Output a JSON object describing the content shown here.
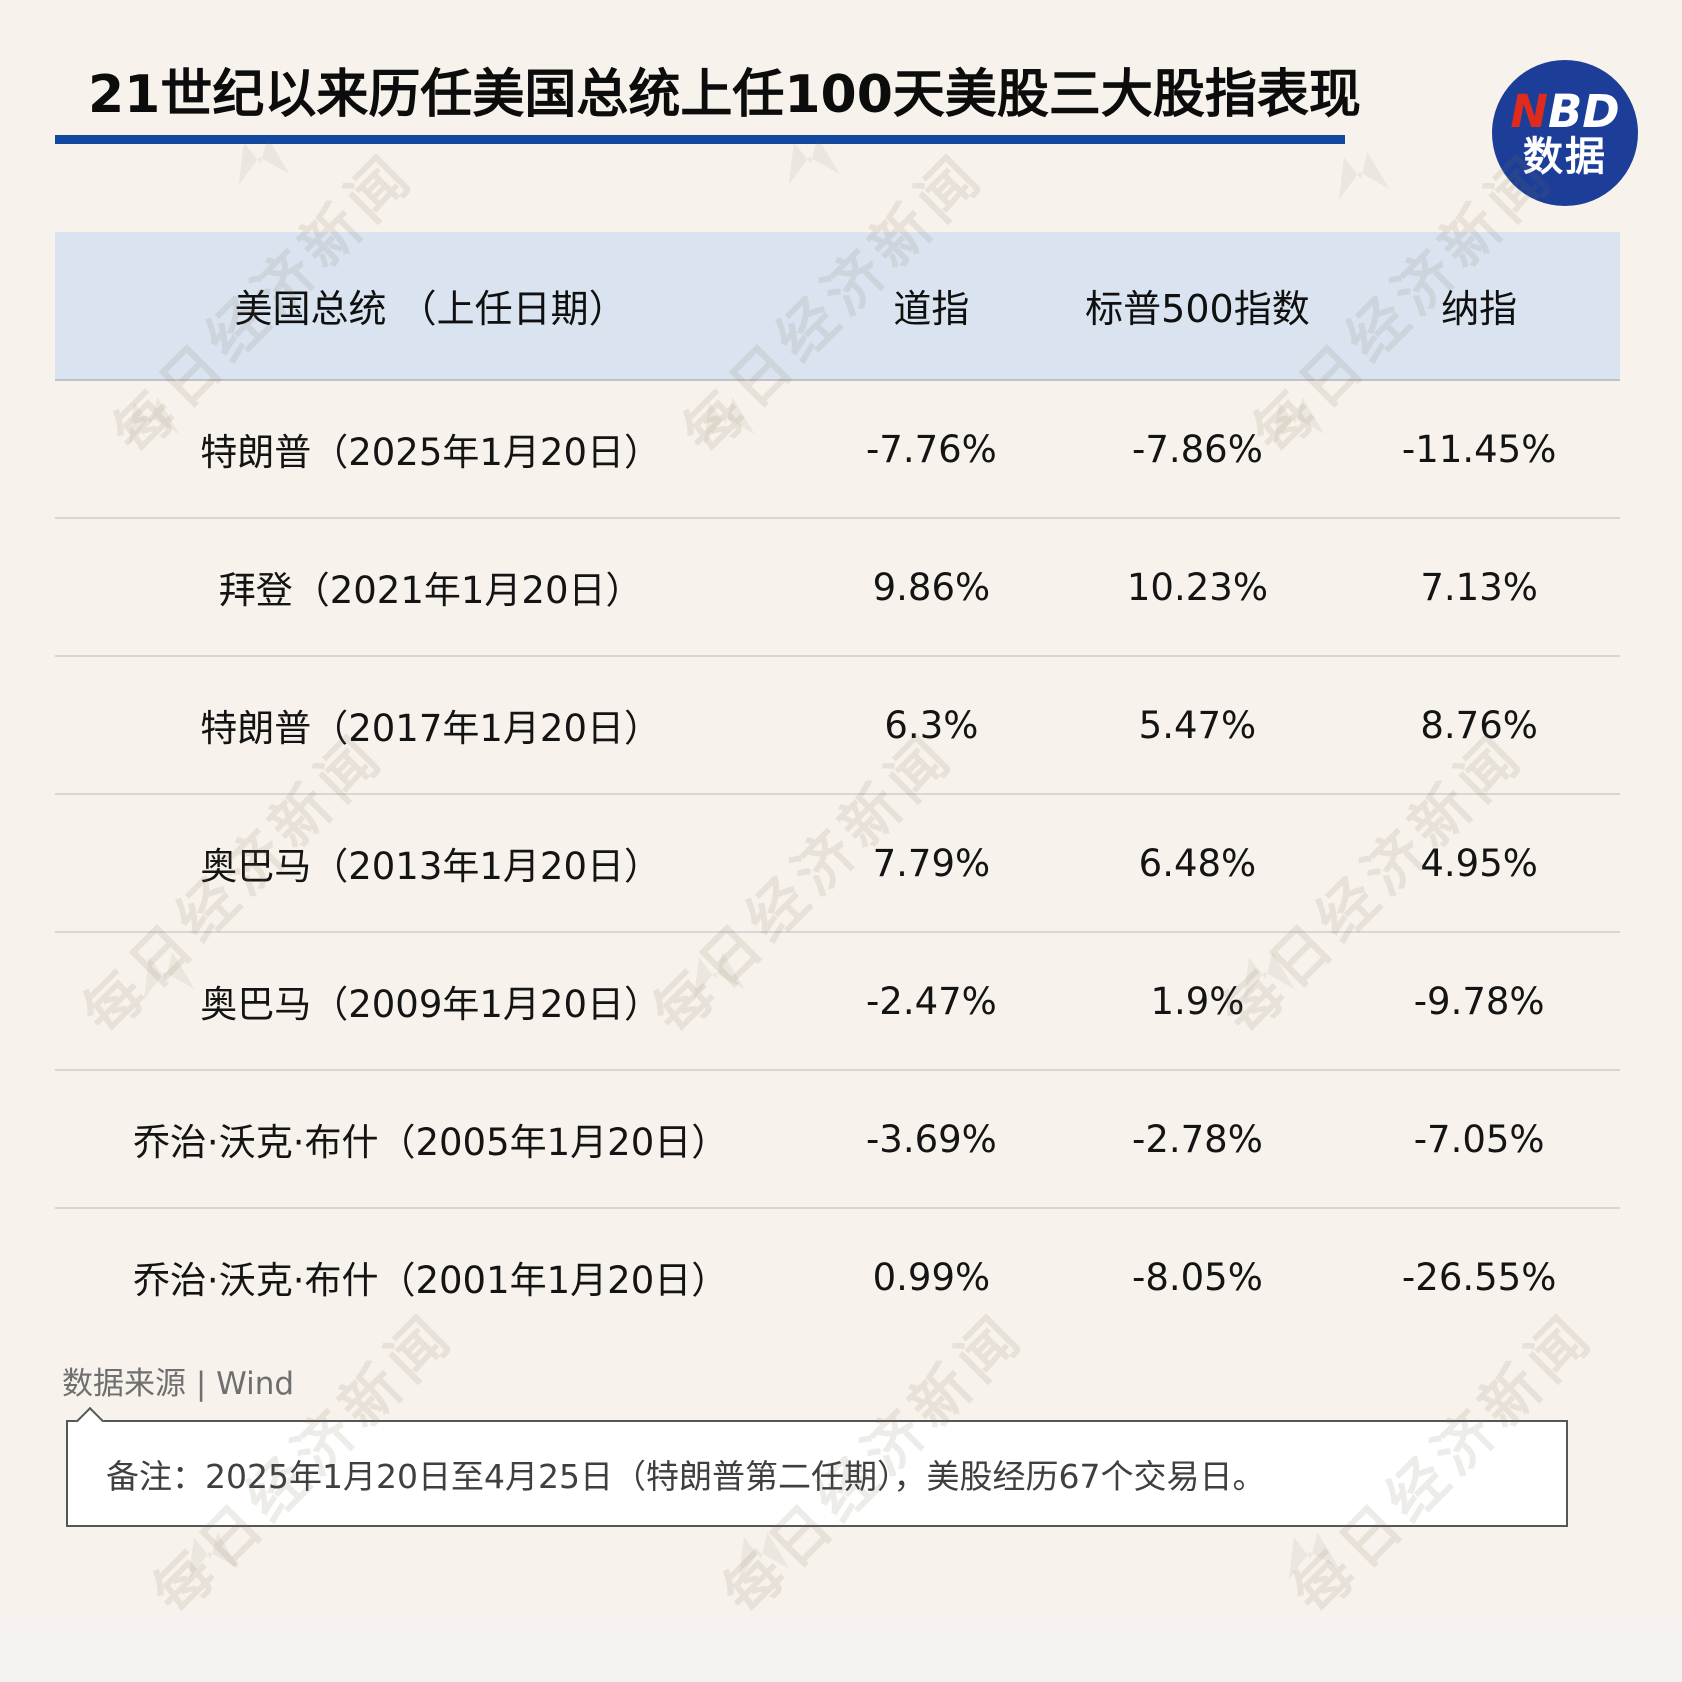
{
  "title": "21世纪以来历任美国总统上任100天美股三大股指表现",
  "logo": {
    "line1_red": "N",
    "line1_white": "BD",
    "line2": "数据"
  },
  "table": {
    "headers": [
      "美国总统 （上任日期）",
      "道指",
      "标普500指数",
      "纳指"
    ],
    "rows": [
      {
        "president": "特朗普（2025年1月20日）",
        "dow": "-7.76%",
        "sp500": "-7.86%",
        "nasdaq": "-11.45%"
      },
      {
        "president": "拜登（2021年1月20日）",
        "dow": "9.86%",
        "sp500": "10.23%",
        "nasdaq": "7.13%"
      },
      {
        "president": "特朗普（2017年1月20日）",
        "dow": "6.3%",
        "sp500": "5.47%",
        "nasdaq": "8.76%"
      },
      {
        "president": "奥巴马（2013年1月20日）",
        "dow": "7.79%",
        "sp500": "6.48%",
        "nasdaq": "4.95%"
      },
      {
        "president": "奥巴马（2009年1月20日）",
        "dow": "-2.47%",
        "sp500": "1.9%",
        "nasdaq": "-9.78%"
      },
      {
        "president": "乔治·沃克·布什（2005年1月20日）",
        "dow": "-3.69%",
        "sp500": "-2.78%",
        "nasdaq": "-7.05%"
      },
      {
        "president": "乔治·沃克·布什（2001年1月20日）",
        "dow": "0.99%",
        "sp500": "-8.05%",
        "nasdaq": "-26.55%"
      }
    ]
  },
  "source": "数据来源 | Wind",
  "note": "备注：2025年1月20日至4月25日（特朗普第二任期），美股经历67个交易日。",
  "watermark": {
    "text": "每日经济新闻"
  },
  "colors": {
    "background": "#F7F3EC",
    "accent_blue": "#12479E",
    "logo_blue": "#1D3E98",
    "logo_red": "#DF2B1E",
    "header_bg": "#D9E4F0",
    "row_border": "#D8D7D4"
  },
  "chart_data": {
    "type": "table",
    "title": "21世纪以来历任美国总统上任100天美股三大股指表现",
    "columns": [
      "美国总统（上任日期）",
      "道指",
      "标普500指数",
      "纳指"
    ],
    "rows": [
      [
        "特朗普（2025年1月20日）",
        -7.76,
        -7.86,
        -11.45
      ],
      [
        "拜登（2021年1月20日）",
        9.86,
        10.23,
        7.13
      ],
      [
        "特朗普（2017年1月20日）",
        6.3,
        5.47,
        8.76
      ],
      [
        "奥巴马（2013年1月20日）",
        7.79,
        6.48,
        4.95
      ],
      [
        "奥巴马（2009年1月20日）",
        -2.47,
        1.9,
        -9.78
      ],
      [
        "乔治·沃克·布什（2005年1月20日）",
        -3.69,
        -2.78,
        -7.05
      ],
      [
        "乔治·沃克·布什（2001年1月20日）",
        0.99,
        -8.05,
        -26.55
      ]
    ],
    "units": "%",
    "source": "Wind",
    "note": "备注：2025年1月20日至4月25日（特朗普第二任期），美股经历67个交易日。"
  }
}
